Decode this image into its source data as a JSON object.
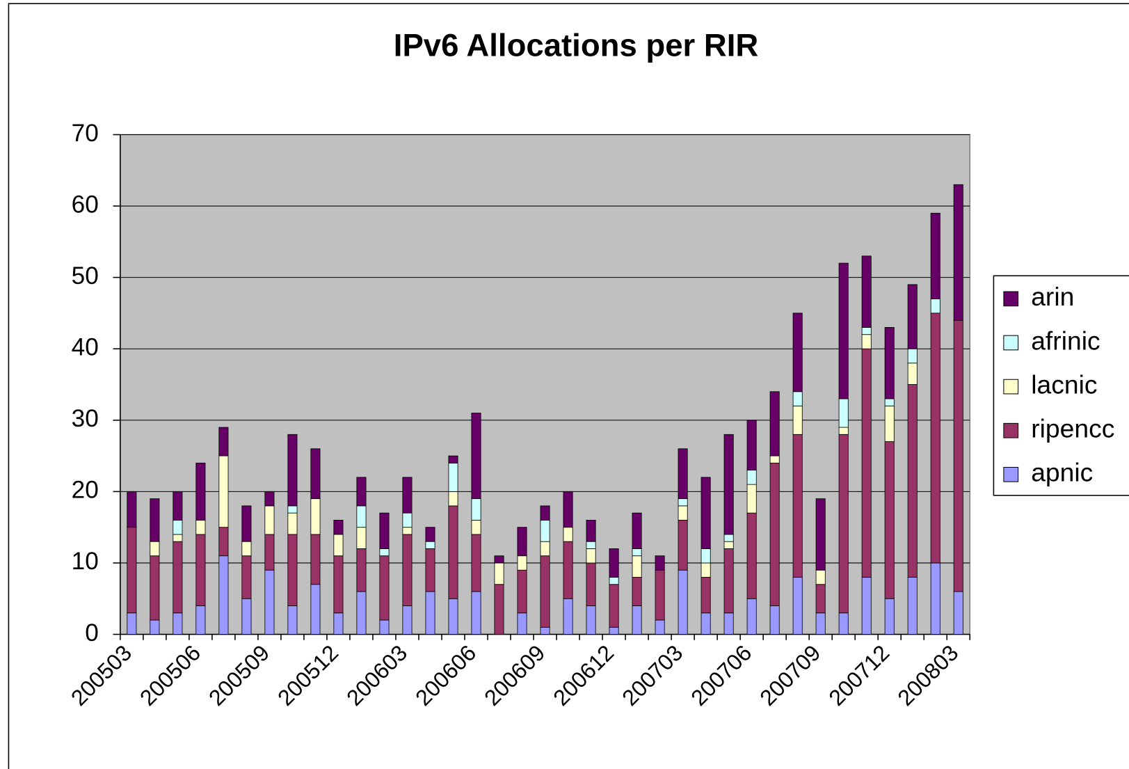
{
  "chart_data": {
    "type": "bar",
    "stacked": true,
    "title": "IPv6 Allocations per RIR",
    "categories": [
      "200503",
      null,
      null,
      "200506",
      null,
      null,
      "200509",
      null,
      null,
      "200512",
      null,
      null,
      "200603",
      null,
      null,
      "200606",
      null,
      null,
      "200609",
      null,
      null,
      "200612",
      null,
      null,
      "200703",
      null,
      null,
      "200706",
      null,
      null,
      "200709",
      null,
      null,
      "200712",
      null,
      null,
      "200803"
    ],
    "series": [
      {
        "name": "apnic",
        "color": "#9999ff",
        "values": [
          3,
          2,
          3,
          4,
          11,
          5,
          9,
          4,
          7,
          3,
          6,
          2,
          4,
          6,
          5,
          6,
          0,
          3,
          1,
          5,
          4,
          1,
          4,
          2,
          9,
          3,
          3,
          5,
          4,
          8,
          3,
          3,
          8,
          5,
          8,
          10,
          6
        ]
      },
      {
        "name": "ripencc",
        "color": "#993366",
        "values": [
          12,
          9,
          10,
          10,
          4,
          6,
          5,
          10,
          7,
          8,
          6,
          9,
          10,
          6,
          13,
          8,
          7,
          6,
          10,
          8,
          6,
          6,
          4,
          7,
          7,
          5,
          9,
          12,
          20,
          20,
          4,
          25,
          32,
          22,
          27,
          35,
          38
        ]
      },
      {
        "name": "lacnic",
        "color": "#ffffcc",
        "values": [
          0,
          2,
          1,
          2,
          10,
          2,
          4,
          3,
          5,
          3,
          3,
          0,
          1,
          0,
          2,
          2,
          3,
          2,
          2,
          2,
          2,
          0,
          3,
          0,
          2,
          2,
          1,
          4,
          1,
          4,
          2,
          1,
          2,
          5,
          3,
          0,
          0
        ]
      },
      {
        "name": "afrinic",
        "color": "#ccffff",
        "values": [
          0,
          0,
          2,
          0,
          0,
          0,
          0,
          1,
          0,
          0,
          3,
          1,
          2,
          1,
          4,
          3,
          0,
          0,
          3,
          0,
          1,
          1,
          1,
          0,
          1,
          2,
          1,
          2,
          0,
          2,
          0,
          4,
          1,
          1,
          2,
          2,
          0
        ]
      },
      {
        "name": "arin",
        "color": "#660066",
        "values": [
          5,
          6,
          4,
          8,
          4,
          5,
          2,
          10,
          7,
          2,
          4,
          5,
          5,
          2,
          1,
          12,
          1,
          4,
          2,
          5,
          3,
          4,
          5,
          2,
          7,
          10,
          14,
          7,
          9,
          11,
          10,
          19,
          10,
          10,
          9,
          12,
          19
        ]
      }
    ],
    "ylim": [
      0,
      70
    ],
    "yticks": [
      0,
      10,
      20,
      30,
      40,
      50,
      60,
      70
    ],
    "grid": true,
    "plot_background": "#c0c0c0",
    "legend": "right"
  }
}
